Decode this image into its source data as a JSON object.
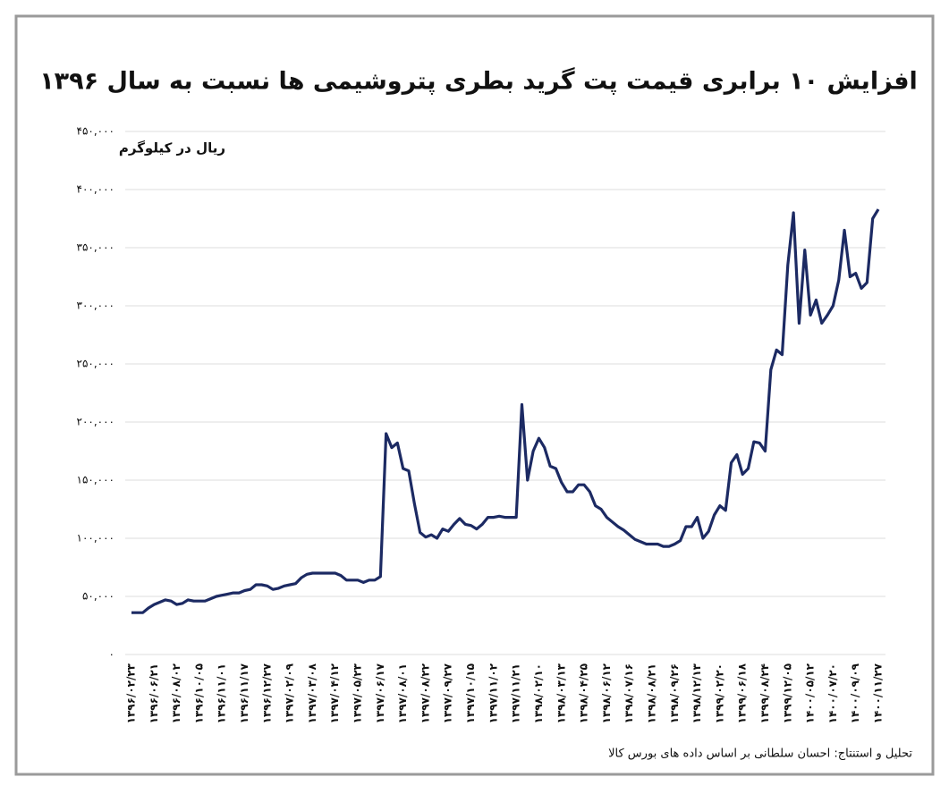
{
  "chart_data": {
    "type": "line",
    "title": "افزایش ۱۰ برابری قیمت پت گرید بطری پتروشیمی ها نسبت به سال ۱۳۹۶",
    "y_label": "ریال در کیلوگرم",
    "source": "تحلیل و استنتاج: احسان سلطانی بر اساس داده های بورس کالا",
    "color": "#1c2a63",
    "grid": true,
    "ylim": [
      0,
      450000
    ],
    "yticks": [
      {
        "value": 0,
        "label": "۰"
      },
      {
        "value": 50000,
        "label": "۵۰,۰۰۰"
      },
      {
        "value": 100000,
        "label": "۱۰۰,۰۰۰"
      },
      {
        "value": 150000,
        "label": "۱۵۰,۰۰۰"
      },
      {
        "value": 200000,
        "label": "۲۰۰,۰۰۰"
      },
      {
        "value": 250000,
        "label": "۲۵۰,۰۰۰"
      },
      {
        "value": 300000,
        "label": "۳۰۰,۰۰۰"
      },
      {
        "value": 350000,
        "label": "۳۵۰,۰۰۰"
      },
      {
        "value": 400000,
        "label": "۴۰۰,۰۰۰"
      },
      {
        "value": 450000,
        "label": "۴۵۰,۰۰۰"
      }
    ],
    "categories": [
      "۱۳۹۶/۰۲/۲۳",
      null,
      null,
      null,
      "۱۳۹۶/۰۶/۲۱",
      null,
      null,
      null,
      "۱۳۹۶/۰۸/۰۲",
      null,
      null,
      null,
      "۱۳۹۶/۱۰/۰۵",
      null,
      null,
      null,
      "۱۳۹۶/۱۱/۰۱",
      null,
      null,
      null,
      "۱۳۹۶/۱۱/۱۷",
      null,
      null,
      null,
      "۱۳۹۶/۱۲/۲۷",
      null,
      null,
      null,
      "۱۳۹۷/۰۲/۰۹",
      null,
      null,
      null,
      "۱۳۹۷/۰۳/۰۸",
      null,
      null,
      null,
      "۱۳۹۷/۰۴/۱۲",
      null,
      null,
      null,
      "۱۳۹۷/۰۵/۲۳",
      null,
      null,
      null,
      "۱۳۹۷/۰۶/۱۷",
      null,
      null,
      null,
      "۱۳۹۷/۰۸/۰۱",
      null,
      null,
      null,
      "۱۳۹۷/۰۸/۲۲",
      null,
      null,
      null,
      "۱۳۹۷/۰۹/۲۷",
      null,
      null,
      null,
      "۱۳۹۷/۱۰/۱۵",
      null,
      null,
      null,
      "۱۳۹۷/۱۱/۰۲",
      null,
      null,
      null,
      "۱۳۹۷/۱۱/۲۱",
      null,
      null,
      null,
      "۱۳۹۸/۰۲/۱۰",
      null,
      null,
      null,
      "۱۳۹۸/۰۳/۱۳",
      null,
      null,
      null,
      "۱۳۹۸/۰۴/۲۵",
      null,
      null,
      null,
      "۱۳۹۸/۰۶/۱۲",
      null,
      null,
      null,
      "۱۳۹۸/۰۷/۱۶",
      null,
      null,
      null,
      "۱۳۹۸/۰۸/۲۱",
      null,
      null,
      null,
      "۱۳۹۸/۰۹/۲۶",
      null,
      null,
      null,
      "۱۳۹۸/۱۲/۱۳",
      null,
      null,
      null,
      "۱۳۹۹/۰۲/۲۰",
      null,
      null,
      null,
      "۱۳۹۹/۰۶/۱۸",
      null,
      null,
      null,
      "۱۳۹۹/۰۸/۲۴",
      null,
      null,
      null,
      "۱۳۹۹/۱۲/۰۵",
      null,
      null,
      null,
      "۱۴۰۰/۰۵/۱۲",
      null,
      null,
      null,
      "۱۴۰۰/۰۷/۲۰",
      null,
      null,
      null,
      "۱۴۰۰/۰۹/۰۹",
      null,
      null,
      null,
      "۱۴۰۰/۱۱/۲۷"
    ],
    "values": [
      36000,
      36000,
      36000,
      40000,
      43000,
      45000,
      47000,
      46000,
      43000,
      44000,
      47000,
      46000,
      46000,
      46000,
      48000,
      50000,
      51000,
      52000,
      53000,
      53000,
      55000,
      56000,
      60000,
      60000,
      59000,
      56000,
      57000,
      59000,
      60000,
      61000,
      66000,
      69000,
      70000,
      70000,
      70000,
      70000,
      70000,
      68000,
      64000,
      64000,
      64000,
      62000,
      64000,
      64000,
      67000,
      190000,
      178000,
      182000,
      160000,
      158000,
      130000,
      105000,
      101000,
      103000,
      100000,
      108000,
      106000,
      112000,
      117000,
      112000,
      111000,
      108000,
      112000,
      118000,
      118000,
      119000,
      118000,
      118000,
      118000,
      215000,
      150000,
      175000,
      186000,
      178000,
      162000,
      160000,
      148000,
      140000,
      140000,
      146000,
      146000,
      140000,
      128000,
      125000,
      118000,
      114000,
      110000,
      107000,
      103000,
      99000,
      97000,
      95000,
      95000,
      95000,
      93000,
      93000,
      95000,
      98000,
      110000,
      110000,
      118000,
      100000,
      106000,
      120000,
      128000,
      124000,
      165000,
      172000,
      155000,
      160000,
      183000,
      182000,
      175000,
      245000,
      262000,
      258000,
      335000,
      380000,
      285000,
      348000,
      292000,
      305000,
      285000,
      292000,
      300000,
      322000,
      365000,
      325000,
      328000,
      315000,
      320000,
      375000,
      383000
    ]
  }
}
